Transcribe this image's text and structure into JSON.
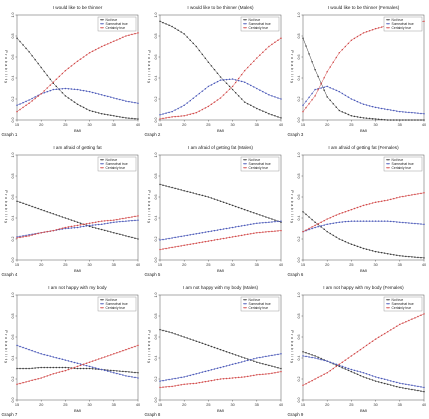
{
  "series_names": [
    "Not true",
    "Somewhat true",
    "Certainly true"
  ],
  "colors": {
    "Not true": "#3a3a3a",
    "Somewhat true": "#4a58b8",
    "Certainly true": "#d24a4a"
  },
  "axis": {
    "xlabel": "BMI",
    "ylabel": "Probability",
    "xticks": [
      15,
      20,
      25,
      30,
      35,
      40
    ],
    "yticks": [
      "0.0",
      "0.2",
      "0.4",
      "0.6",
      "0.8",
      "1.0"
    ]
  },
  "chart_data": [
    {
      "type": "line",
      "title": "I would like to be thinner",
      "caption": "Graph 1",
      "x": [
        15,
        17.5,
        20,
        22.5,
        25,
        27.5,
        30,
        32.5,
        35,
        37.5,
        40
      ],
      "xlim": [
        15,
        40
      ],
      "ylim": [
        0,
        1
      ],
      "xlabel": "BMI",
      "ylabel": "Probability",
      "grid": false,
      "legend": "top-right",
      "series": [
        {
          "name": "Not true",
          "values": [
            0.78,
            0.65,
            0.5,
            0.35,
            0.23,
            0.15,
            0.09,
            0.06,
            0.04,
            0.02,
            0.01
          ]
        },
        {
          "name": "Somewhat true",
          "values": [
            0.14,
            0.19,
            0.25,
            0.29,
            0.3,
            0.29,
            0.27,
            0.24,
            0.21,
            0.18,
            0.16
          ]
        },
        {
          "name": "Certainly true",
          "values": [
            0.08,
            0.16,
            0.25,
            0.36,
            0.47,
            0.56,
            0.64,
            0.7,
            0.75,
            0.8,
            0.83
          ]
        }
      ]
    },
    {
      "type": "line",
      "title": "I would like to be thinner (Males)",
      "caption": "Graph 2",
      "x": [
        15,
        17.5,
        20,
        22.5,
        25,
        27.5,
        30,
        32.5,
        35,
        37.5,
        40
      ],
      "xlim": [
        15,
        40
      ],
      "ylim": [
        0,
        1
      ],
      "xlabel": "BMI",
      "ylabel": "Probability",
      "grid": false,
      "legend": "top-right",
      "series": [
        {
          "name": "Not true",
          "values": [
            0.94,
            0.89,
            0.82,
            0.7,
            0.55,
            0.41,
            0.29,
            0.17,
            0.11,
            0.06,
            0.02
          ]
        },
        {
          "name": "Somewhat true",
          "values": [
            0.05,
            0.08,
            0.14,
            0.23,
            0.32,
            0.38,
            0.39,
            0.36,
            0.3,
            0.24,
            0.2
          ]
        },
        {
          "name": "Certainly true",
          "values": [
            0.01,
            0.03,
            0.04,
            0.07,
            0.13,
            0.21,
            0.32,
            0.47,
            0.59,
            0.7,
            0.78
          ]
        }
      ]
    },
    {
      "type": "line",
      "title": "I would like to be thinner (Females)",
      "caption": "Graph 3",
      "x": [
        15,
        17.5,
        20,
        22.5,
        25,
        27.5,
        30,
        32.5,
        35,
        37.5,
        40
      ],
      "xlim": [
        15,
        40
      ],
      "ylim": [
        0,
        1
      ],
      "xlabel": "BMI",
      "ylabel": "Probability",
      "grid": false,
      "legend": "top-right",
      "series": [
        {
          "name": "Not true",
          "values": [
            0.78,
            0.48,
            0.22,
            0.09,
            0.04,
            0.02,
            0.01,
            0.0,
            0.0,
            0.0,
            0.0
          ]
        },
        {
          "name": "Somewhat true",
          "values": [
            0.14,
            0.29,
            0.32,
            0.27,
            0.2,
            0.15,
            0.12,
            0.1,
            0.08,
            0.07,
            0.06
          ]
        },
        {
          "name": "Certainly true",
          "values": [
            0.08,
            0.23,
            0.46,
            0.64,
            0.76,
            0.83,
            0.87,
            0.9,
            0.92,
            0.93,
            0.94
          ]
        }
      ]
    },
    {
      "type": "line",
      "title": "I am afraid of getting fat",
      "caption": "Graph 4",
      "x": [
        15,
        17.5,
        20,
        22.5,
        25,
        27.5,
        30,
        32.5,
        35,
        37.5,
        40
      ],
      "xlim": [
        15,
        40
      ],
      "ylim": [
        0,
        1
      ],
      "xlabel": "BMI",
      "ylabel": "Probability",
      "grid": false,
      "legend": "top-right",
      "series": [
        {
          "name": "Not true",
          "values": [
            0.56,
            0.52,
            0.48,
            0.44,
            0.4,
            0.36,
            0.32,
            0.29,
            0.26,
            0.23,
            0.2
          ]
        },
        {
          "name": "Somewhat true",
          "values": [
            0.22,
            0.24,
            0.26,
            0.28,
            0.3,
            0.31,
            0.33,
            0.34,
            0.36,
            0.37,
            0.38
          ]
        },
        {
          "name": "Certainly true",
          "values": [
            0.21,
            0.23,
            0.26,
            0.28,
            0.31,
            0.33,
            0.35,
            0.37,
            0.38,
            0.4,
            0.42
          ]
        }
      ]
    },
    {
      "type": "line",
      "title": "I am afraid of getting fat (Males)",
      "caption": "Graph 5",
      "x": [
        15,
        17.5,
        20,
        22.5,
        25,
        27.5,
        30,
        32.5,
        35,
        37.5,
        40
      ],
      "xlim": [
        15,
        40
      ],
      "ylim": [
        0,
        1
      ],
      "xlabel": "BMI",
      "ylabel": "Probability",
      "grid": false,
      "legend": "top-right",
      "series": [
        {
          "name": "Not true",
          "values": [
            0.72,
            0.69,
            0.66,
            0.63,
            0.6,
            0.56,
            0.52,
            0.48,
            0.44,
            0.4,
            0.36
          ]
        },
        {
          "name": "Somewhat true",
          "values": [
            0.19,
            0.21,
            0.23,
            0.25,
            0.27,
            0.29,
            0.31,
            0.33,
            0.35,
            0.36,
            0.37
          ]
        },
        {
          "name": "Certainly true",
          "values": [
            0.1,
            0.12,
            0.14,
            0.16,
            0.18,
            0.2,
            0.22,
            0.24,
            0.26,
            0.27,
            0.28
          ]
        }
      ]
    },
    {
      "type": "line",
      "title": "I am afraid of getting fat (Females)",
      "caption": "Graph 6",
      "x": [
        15,
        17.5,
        20,
        22.5,
        25,
        27.5,
        30,
        32.5,
        35,
        37.5,
        40
      ],
      "xlim": [
        15,
        40
      ],
      "ylim": [
        0,
        1
      ],
      "xlabel": "BMI",
      "ylabel": "Probability",
      "grid": false,
      "legend": "top-right",
      "series": [
        {
          "name": "Not true",
          "values": [
            0.46,
            0.36,
            0.27,
            0.2,
            0.15,
            0.11,
            0.08,
            0.06,
            0.04,
            0.03,
            0.02
          ]
        },
        {
          "name": "Somewhat true",
          "values": [
            0.27,
            0.31,
            0.34,
            0.36,
            0.37,
            0.37,
            0.37,
            0.37,
            0.36,
            0.35,
            0.34
          ]
        },
        {
          "name": "Certainly true",
          "values": [
            0.27,
            0.33,
            0.39,
            0.44,
            0.48,
            0.52,
            0.55,
            0.57,
            0.6,
            0.62,
            0.64
          ]
        }
      ]
    },
    {
      "type": "line",
      "title": "I am not happy with my body",
      "caption": "Graph 7",
      "x": [
        15,
        17.5,
        20,
        22.5,
        25,
        27.5,
        30,
        32.5,
        35,
        37.5,
        40
      ],
      "xlim": [
        15,
        40
      ],
      "ylim": [
        0,
        1
      ],
      "xlabel": "BMI",
      "ylabel": "Probability",
      "grid": false,
      "legend": "top-right",
      "series": [
        {
          "name": "Not true",
          "values": [
            0.3,
            0.3,
            0.31,
            0.31,
            0.31,
            0.3,
            0.3,
            0.29,
            0.28,
            0.27,
            0.26
          ]
        },
        {
          "name": "Somewhat true",
          "values": [
            0.52,
            0.48,
            0.44,
            0.41,
            0.38,
            0.35,
            0.32,
            0.29,
            0.26,
            0.23,
            0.21
          ]
        },
        {
          "name": "Certainly true",
          "values": [
            0.15,
            0.18,
            0.21,
            0.25,
            0.28,
            0.32,
            0.36,
            0.4,
            0.44,
            0.48,
            0.52
          ]
        }
      ]
    },
    {
      "type": "line",
      "title": "I am not happy with my body (Males)",
      "caption": "Graph 8",
      "x": [
        15,
        17.5,
        20,
        22.5,
        25,
        27.5,
        30,
        32.5,
        35,
        37.5,
        40
      ],
      "xlim": [
        15,
        40
      ],
      "ylim": [
        0,
        1
      ],
      "xlabel": "BMI",
      "ylabel": "Probability",
      "grid": false,
      "legend": "top-right",
      "series": [
        {
          "name": "Not true",
          "values": [
            0.67,
            0.64,
            0.6,
            0.56,
            0.52,
            0.48,
            0.44,
            0.4,
            0.36,
            0.33,
            0.3
          ]
        },
        {
          "name": "Somewhat true",
          "values": [
            0.18,
            0.2,
            0.22,
            0.25,
            0.28,
            0.31,
            0.34,
            0.37,
            0.4,
            0.42,
            0.44
          ]
        },
        {
          "name": "Certainly true",
          "values": [
            0.12,
            0.13,
            0.15,
            0.16,
            0.18,
            0.2,
            0.21,
            0.22,
            0.24,
            0.25,
            0.27
          ]
        }
      ]
    },
    {
      "type": "line",
      "title": "I am not happy with my body (Females)",
      "caption": "Graph 9",
      "x": [
        15,
        17.5,
        20,
        22.5,
        25,
        27.5,
        30,
        32.5,
        35,
        37.5,
        40
      ],
      "xlim": [
        15,
        40
      ],
      "ylim": [
        0,
        1
      ],
      "xlabel": "BMI",
      "ylabel": "Probability",
      "grid": false,
      "legend": "top-right",
      "series": [
        {
          "name": "Not true",
          "values": [
            0.46,
            0.42,
            0.37,
            0.32,
            0.27,
            0.22,
            0.18,
            0.15,
            0.12,
            0.1,
            0.08
          ]
        },
        {
          "name": "Somewhat true",
          "values": [
            0.42,
            0.4,
            0.37,
            0.33,
            0.29,
            0.26,
            0.22,
            0.19,
            0.16,
            0.14,
            0.12
          ]
        },
        {
          "name": "Certainly true",
          "values": [
            0.14,
            0.2,
            0.26,
            0.34,
            0.42,
            0.5,
            0.58,
            0.65,
            0.72,
            0.77,
            0.82
          ]
        }
      ]
    }
  ]
}
